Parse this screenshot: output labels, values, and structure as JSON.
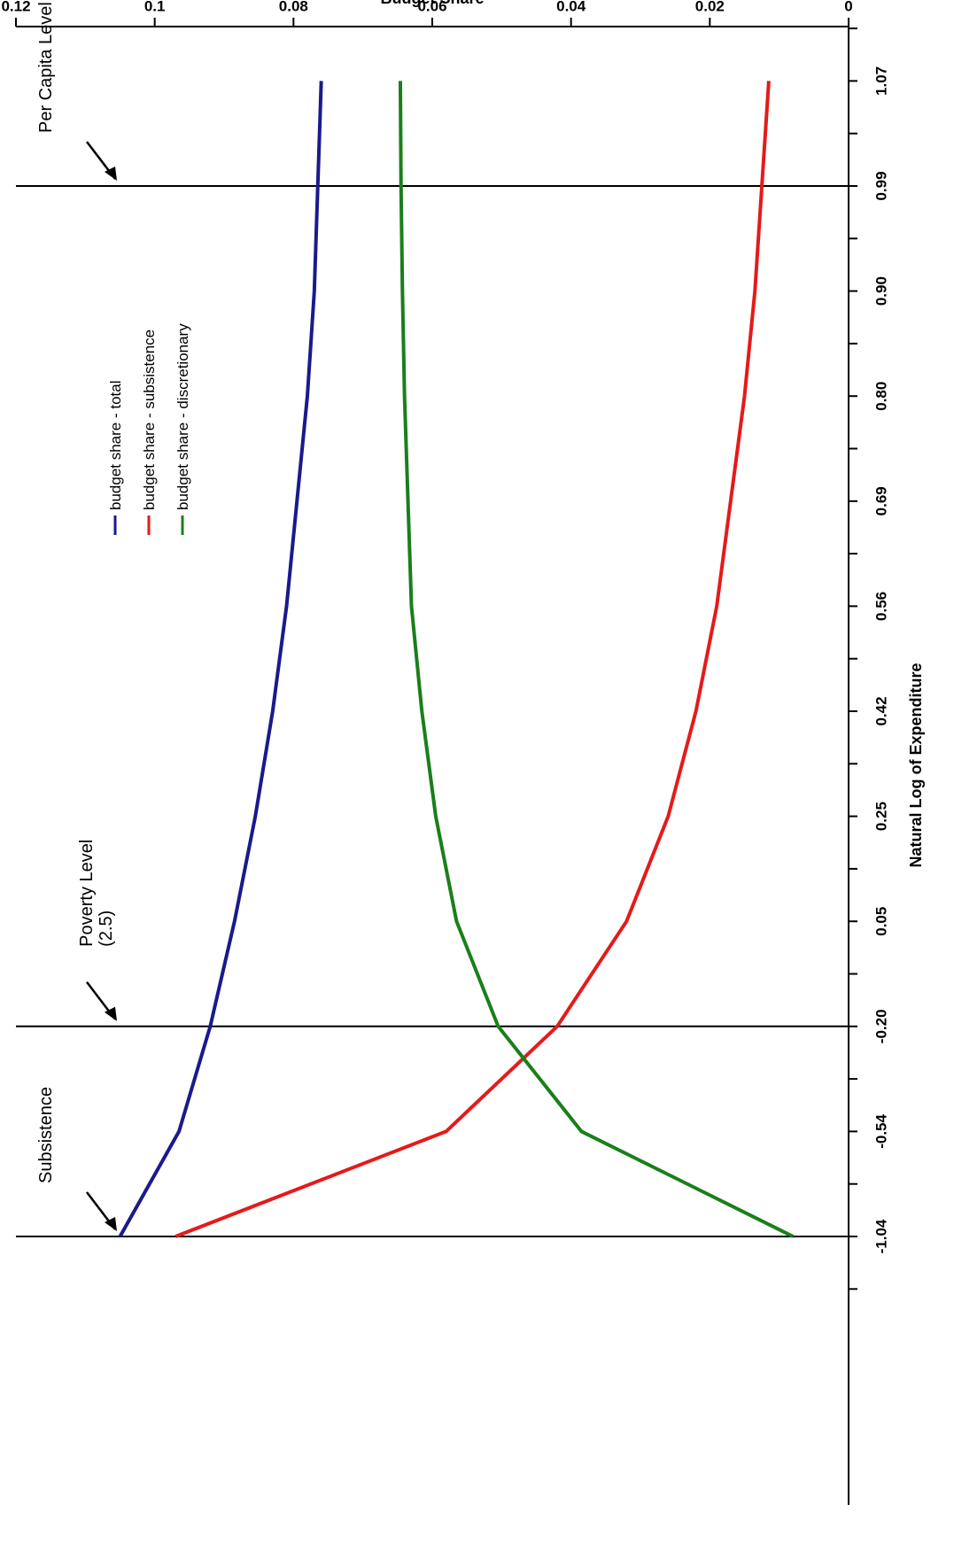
{
  "chart_data": {
    "type": "line",
    "xlabel": "Natural Log of Expenditure",
    "ylabel": "Budget Share",
    "x_ticks": [
      "-1.04",
      "-0.54",
      "-0.20",
      "0.05",
      "0.25",
      "0.42",
      "0.56",
      "0.69",
      "0.80",
      "0.90",
      "0.99",
      "1.07"
    ],
    "y_ticks": [
      "0",
      "0.02",
      "0.04",
      "0.06",
      "0.08",
      "0.1",
      "0.12"
    ],
    "ylim": [
      0,
      0.12
    ],
    "grid": false,
    "legend_position": "top-left",
    "series": [
      {
        "name": "budget share - total",
        "color": "#1a1a8c",
        "values": [
          0.105,
          0.0965,
          0.092,
          0.0885,
          0.0855,
          0.083,
          0.081,
          0.0795,
          0.078,
          0.077,
          0.0765,
          0.076
        ]
      },
      {
        "name": "budget share - subsistence",
        "color": "#e51a1a",
        "values": [
          0.097,
          0.058,
          0.042,
          0.032,
          0.026,
          0.022,
          0.019,
          0.017,
          0.015,
          0.0135,
          0.0125,
          0.0115
        ]
      },
      {
        "name": "budget share - discretionary",
        "color": "#1a7f1a",
        "values": [
          0.008,
          0.0385,
          0.0505,
          0.0565,
          0.0595,
          0.0615,
          0.063,
          0.0635,
          0.064,
          0.0643,
          0.0645,
          0.0646
        ]
      }
    ],
    "reference_lines": [
      {
        "x_index": 0,
        "label": "Subsistence"
      },
      {
        "x_index": 2,
        "label": "Poverty Level",
        "sublabel": "(2.5)"
      },
      {
        "x_index": 10,
        "label": "Per Capita Level"
      }
    ]
  }
}
